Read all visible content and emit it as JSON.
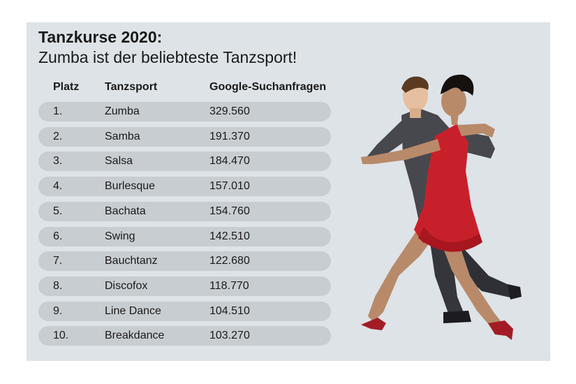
{
  "header": {
    "title": "Tanzkurse 2020:",
    "subtitle": "Zumba ist der beliebteste Tanzsport!"
  },
  "table": {
    "columns": [
      "Platz",
      "Tanzsport",
      "Google-Suchanfragen"
    ],
    "rows": [
      {
        "rank": "1.",
        "name": "Zumba",
        "value": "329.560"
      },
      {
        "rank": "2.",
        "name": "Samba",
        "value": "191.370"
      },
      {
        "rank": "3.",
        "name": "Salsa",
        "value": "184.470"
      },
      {
        "rank": "4.",
        "name": "Burlesque",
        "value": "157.010"
      },
      {
        "rank": "5.",
        "name": "Bachata",
        "value": "154.760"
      },
      {
        "rank": "6.",
        "name": "Swing",
        "value": "142.510"
      },
      {
        "rank": "7.",
        "name": "Bauchtanz",
        "value": "122.680"
      },
      {
        "rank": "8.",
        "name": "Discofox",
        "value": "118.770"
      },
      {
        "rank": "9.",
        "name": "Line Dance",
        "value": "104.510"
      },
      {
        "rank": "10.",
        "name": "Breakdance",
        "value": "103.270"
      }
    ]
  },
  "chart_data": {
    "type": "table",
    "title": "Tanzkurse 2020:",
    "subtitle": "Zumba ist der beliebteste Tanzsport!",
    "columns": [
      "Platz",
      "Tanzsport",
      "Google-Suchanfragen"
    ],
    "categories": [
      "Zumba",
      "Samba",
      "Salsa",
      "Burlesque",
      "Bachata",
      "Swing",
      "Bauchtanz",
      "Discofox",
      "Line Dance",
      "Breakdance"
    ],
    "values": [
      329560,
      191370,
      184470,
      157010,
      154760,
      142510,
      122680,
      118770,
      104510,
      103270
    ]
  },
  "colors": {
    "panel_background": "#dde3e7",
    "row_pill": "#c8cdd1",
    "dress": "#c8202b",
    "suit": "#3a3b40"
  },
  "illustration": {
    "icon": "tango-dancers-icon"
  }
}
